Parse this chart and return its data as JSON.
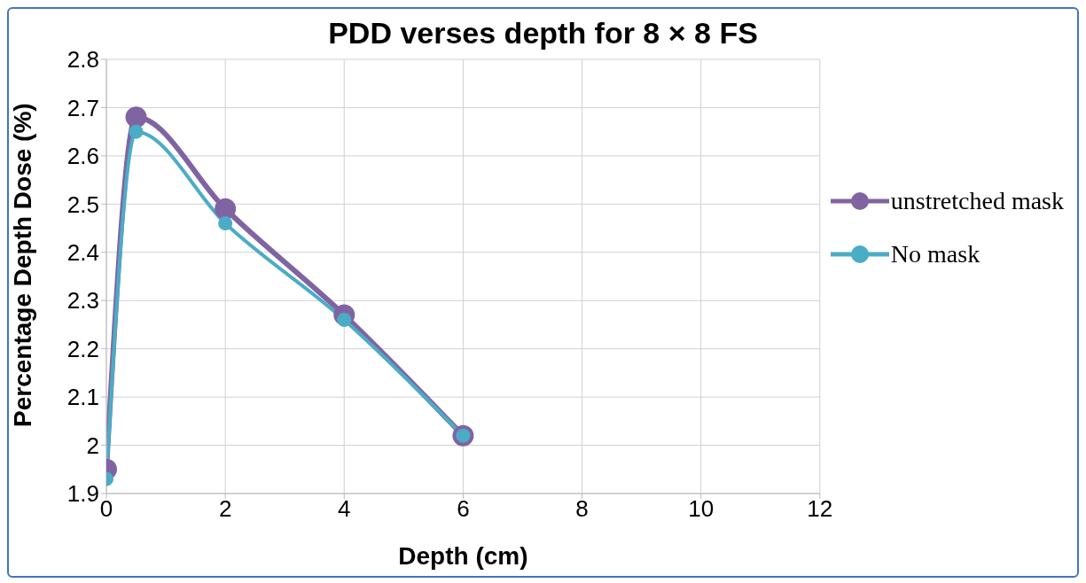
{
  "chart_data": {
    "type": "line",
    "title": "PDD verses depth for 8 × 8 FS",
    "xlabel": "Depth (cm)",
    "ylabel": "Percentage Depth Dose (%)",
    "x": [
      0,
      0.5,
      2,
      4,
      6
    ],
    "series": [
      {
        "name": "unstretched mask",
        "color": "#8064a2",
        "values": [
          1.95,
          2.68,
          2.49,
          2.27,
          2.02
        ]
      },
      {
        "name": "No mask",
        "color": "#4bacc6",
        "values": [
          1.93,
          2.65,
          2.46,
          2.26,
          2.02
        ]
      }
    ],
    "xlim": [
      0,
      12
    ],
    "xticks": [
      0,
      2,
      4,
      6,
      8,
      10,
      12
    ],
    "ylim": [
      1.9,
      2.8
    ],
    "yticks": [
      1.9,
      {
        "value": 2,
        "label": "2"
      },
      2.1,
      2.2,
      2.3,
      2.4,
      2.5,
      2.6,
      2.7,
      2.8
    ],
    "grid": true,
    "legend": "right",
    "marker": "circle",
    "line_style": "solid"
  }
}
